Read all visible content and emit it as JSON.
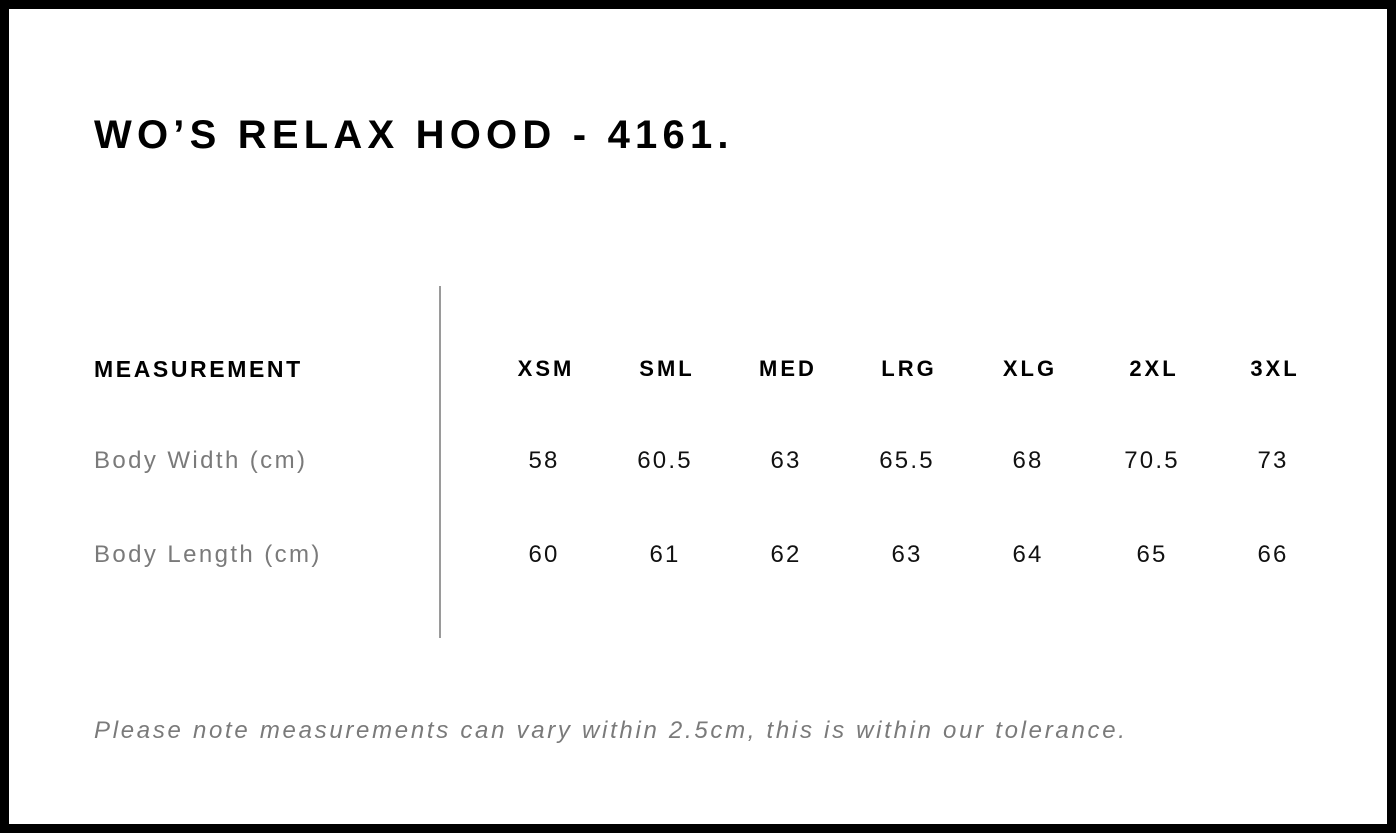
{
  "title": "WO’S RELAX HOOD - 4161.",
  "table": {
    "header_label": "MEASUREMENT",
    "sizes": [
      "XSM",
      "SML",
      "MED",
      "LRG",
      "XLG",
      "2XL",
      "3XL"
    ],
    "rows": [
      {
        "label": "Body Width (cm)",
        "values": [
          "58",
          "60.5",
          "63",
          "65.5",
          "68",
          "70.5",
          "73"
        ]
      },
      {
        "label": "Body Length (cm)",
        "values": [
          "60",
          "61",
          "62",
          "63",
          "64",
          "65",
          "66"
        ]
      }
    ]
  },
  "note": "Please note measurements can vary within 2.5cm, this is within our tolerance."
}
